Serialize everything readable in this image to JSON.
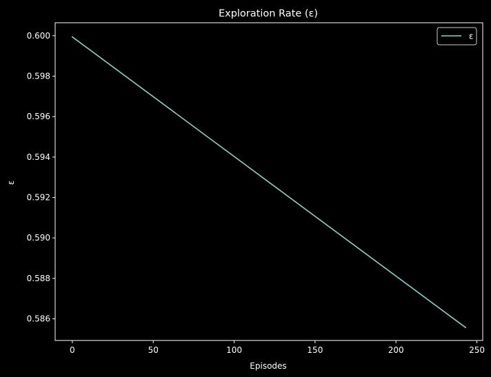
{
  "chart_data": {
    "type": "line",
    "title": "Exploration Rate (ε)",
    "xlabel": "Episodes",
    "ylabel": "ε",
    "xlim": [
      -10.6,
      253.6
    ],
    "ylim": [
      0.58493,
      0.60064
    ],
    "xticks": [
      0,
      50,
      100,
      150,
      200,
      250
    ],
    "yticks": [
      0.586,
      0.588,
      0.59,
      0.592,
      0.594,
      0.596,
      0.598,
      0.6
    ],
    "ytick_decimals": 3,
    "grid": false,
    "legend_position": "top-right",
    "series": [
      {
        "name": "ε",
        "color": "#8dd3c7",
        "x": [
          0,
          243
        ],
        "y": [
          0.59994,
          0.58557
        ]
      }
    ]
  },
  "colors": {
    "background": "#000000",
    "foreground": "#ffffff",
    "line": "#8dd3c7"
  }
}
